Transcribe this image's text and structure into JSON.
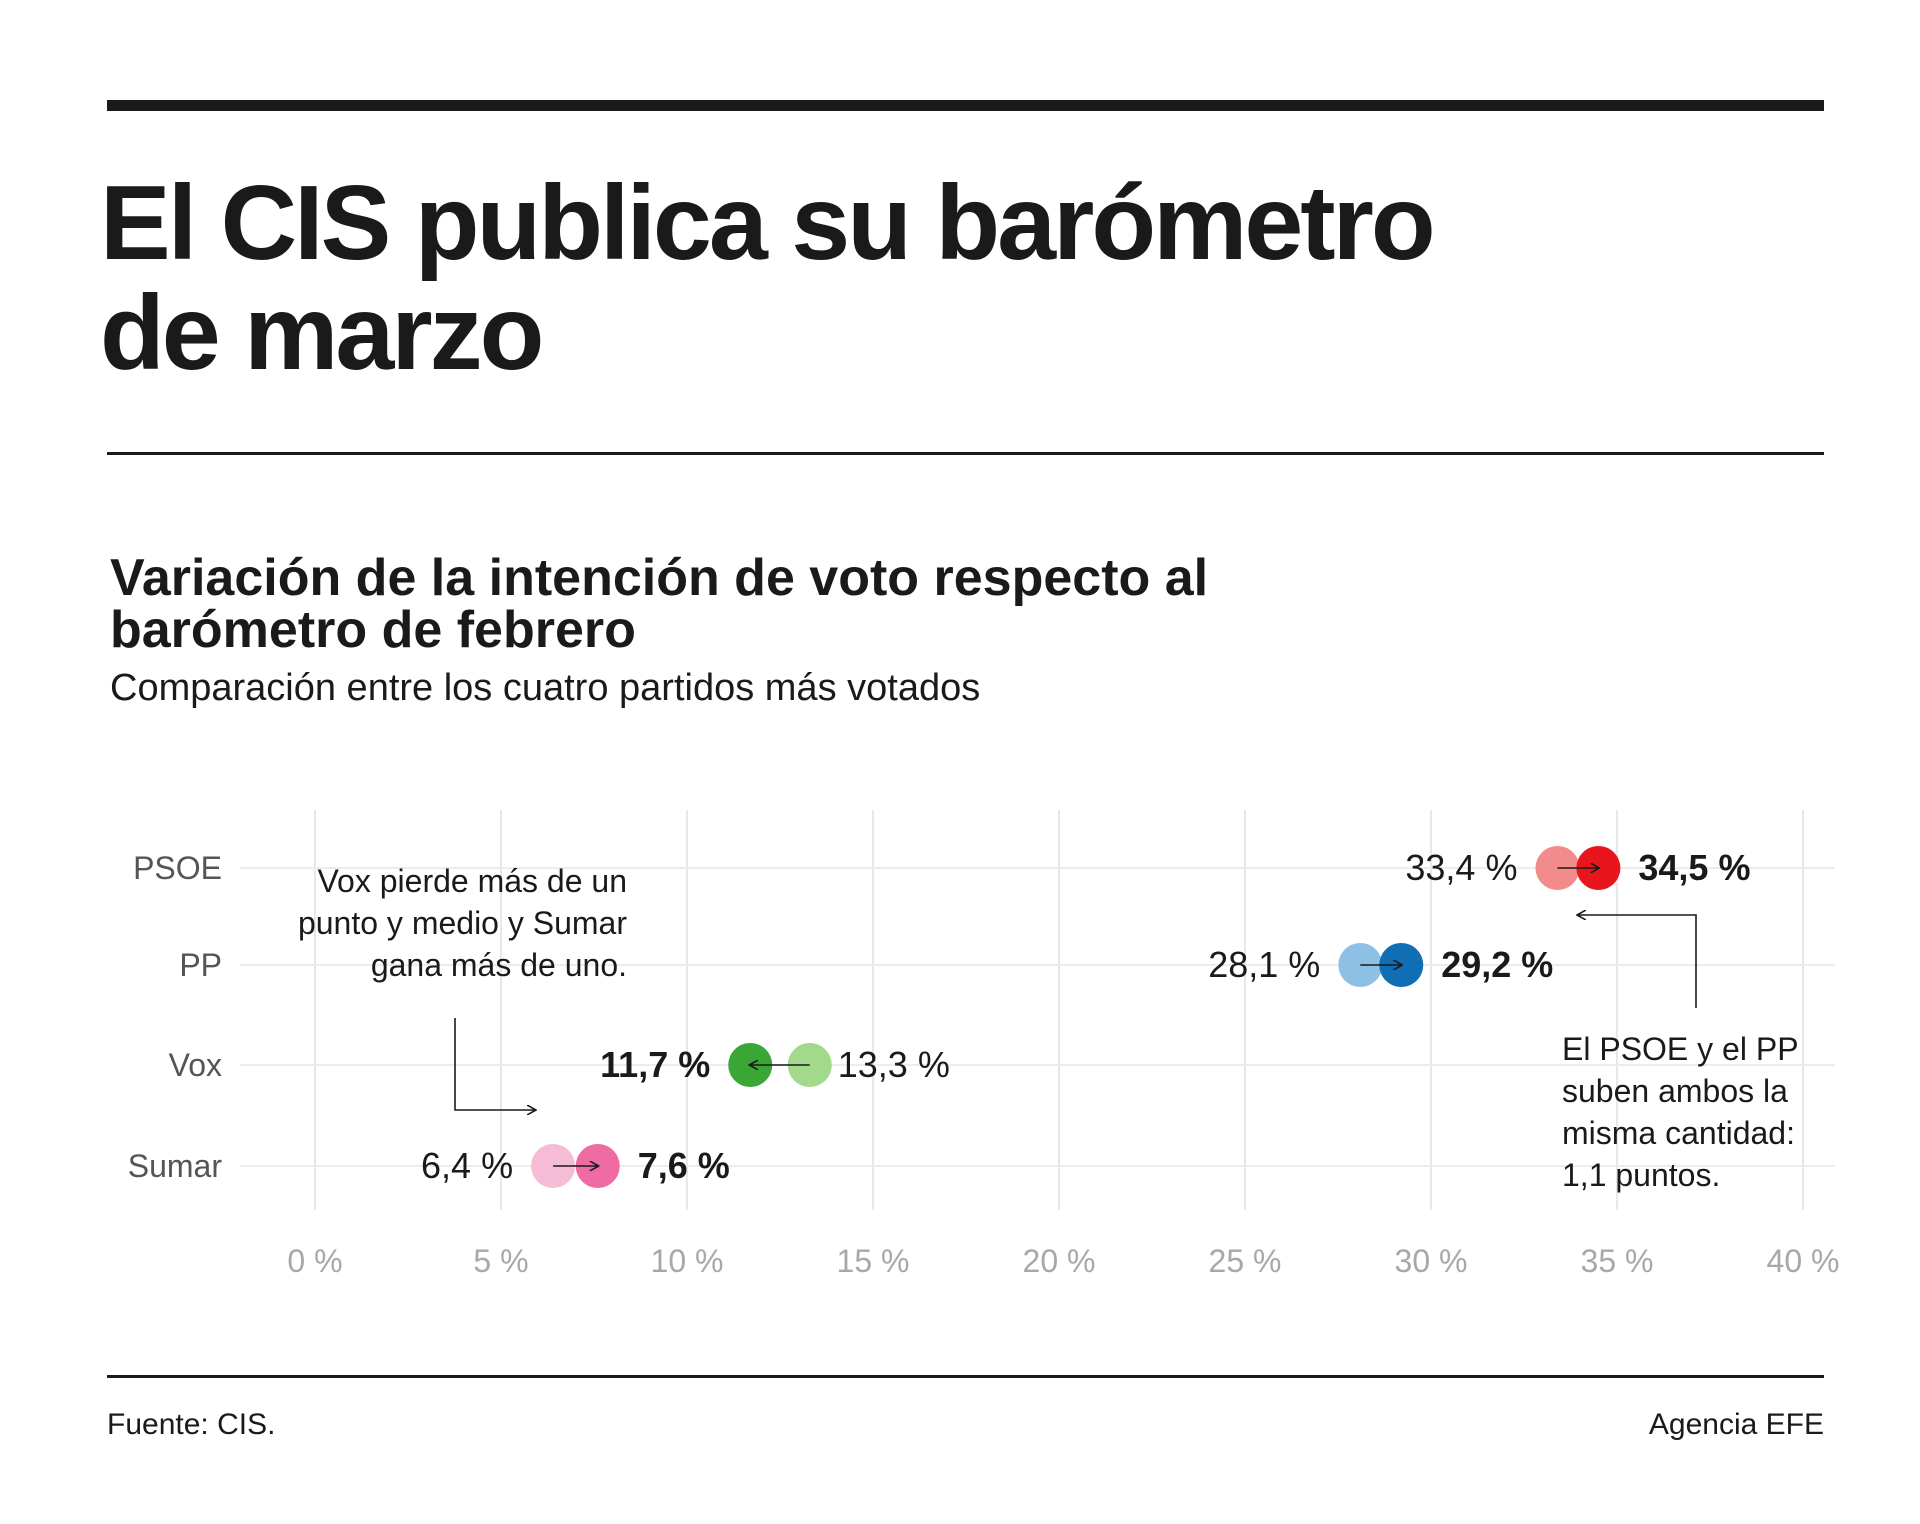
{
  "header": {
    "title_line1": "El CIS publica su barómetro",
    "title_line2": "de marzo"
  },
  "footer": {
    "source": "Fuente: CIS.",
    "credit": "Agencia EFE"
  },
  "chart_data": {
    "type": "dot-arrow",
    "title": "Variación de la intención de voto respecto al barómetro de febrero",
    "title_line1": "Variación de la intención de voto respecto al",
    "title_line2": "barómetro de febrero",
    "subtitle": "Comparación entre los cuatro partidos más votados",
    "xlim": [
      0,
      40
    ],
    "x_ticks": [
      0,
      5,
      10,
      15,
      20,
      25,
      30,
      35,
      40
    ],
    "x_tick_labels": [
      "0 %",
      "5 %",
      "10 %",
      "15 %",
      "20 %",
      "25 %",
      "30 %",
      "35 %",
      "40 %"
    ],
    "grid": true,
    "categories": [
      "PSOE",
      "PP",
      "Vox",
      "Sumar"
    ],
    "series": [
      {
        "name": "febrero",
        "values": [
          33.4,
          28.1,
          13.3,
          6.4
        ],
        "labels": [
          "33,4 %",
          "28,1 %",
          "13,3 %",
          "6,4 %"
        ]
      },
      {
        "name": "marzo",
        "values": [
          34.5,
          29.2,
          11.7,
          7.6
        ],
        "labels": [
          "34,5 %",
          "29,2 %",
          "11,7 %",
          "7,6 %"
        ]
      }
    ],
    "colors": {
      "PSOE": {
        "previous": "#f28b8b",
        "current": "#e8161c"
      },
      "PP": {
        "previous": "#8ec0e6",
        "current": "#0f6eb4"
      },
      "Vox": {
        "previous": "#a3d98a",
        "current": "#3aa636"
      },
      "Sumar": {
        "previous": "#f7bcd5",
        "current": "#ef6ba3"
      }
    },
    "annotations": [
      {
        "lines": [
          "Vox pierde más de un",
          "punto y medio y Sumar",
          "gana más de uno."
        ]
      },
      {
        "lines": [
          "El PSOE y el PP",
          "suben ambos la",
          "misma cantidad:",
          "1,1 puntos."
        ]
      }
    ]
  }
}
